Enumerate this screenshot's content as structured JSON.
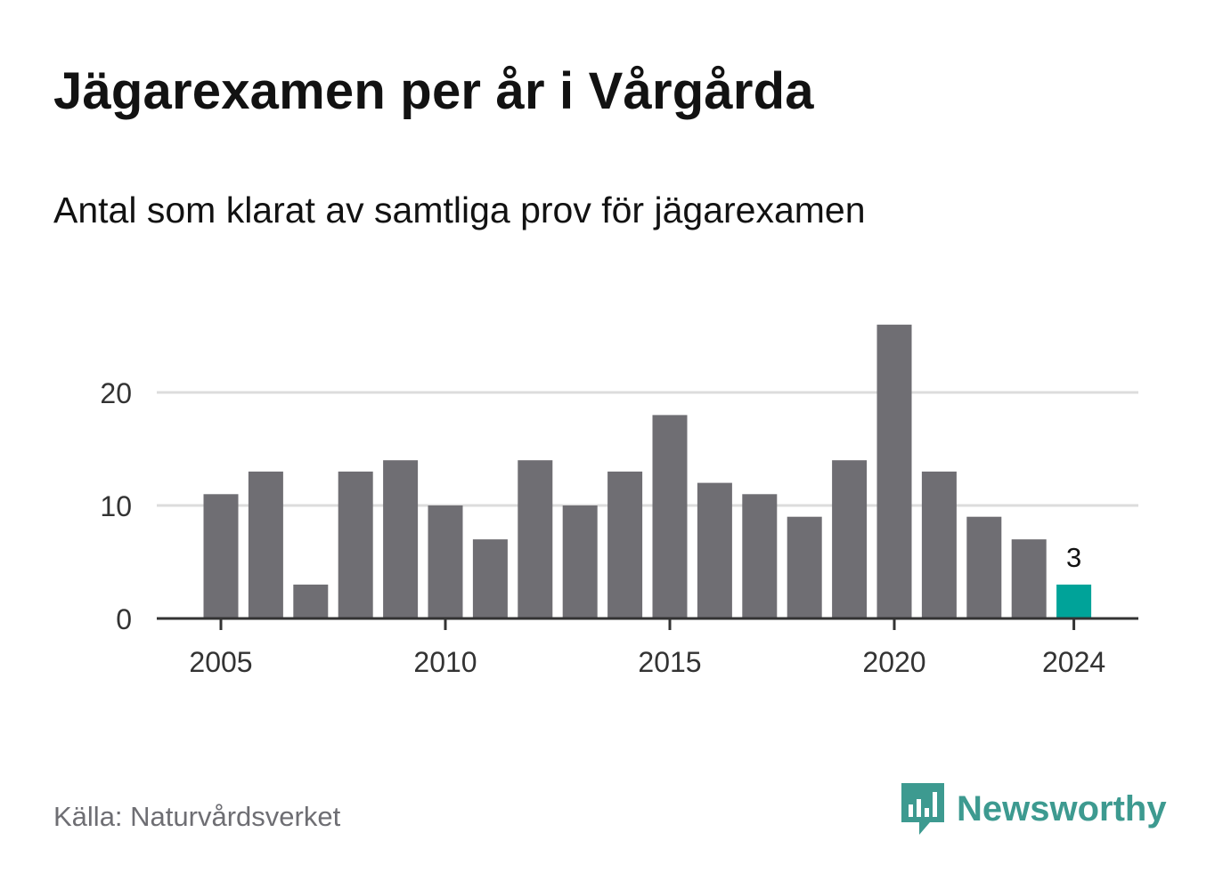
{
  "title": "Jägarexamen per år i Vårgårda",
  "subtitle": "Antal som klarat av samtliga prov för jägarexamen",
  "source": "Källa: Naturvårdsverket",
  "brand": {
    "name": "Newsworthy",
    "icon": "newsworthy-logo-icon",
    "color": "#3d9a90"
  },
  "colors": {
    "bar": "#6f6e73",
    "highlight": "#00a399",
    "grid": "#dcdcdc",
    "axis": "#333333"
  },
  "chart_data": {
    "type": "bar",
    "categories": [
      "2005",
      "2006",
      "2007",
      "2008",
      "2009",
      "2010",
      "2011",
      "2012",
      "2013",
      "2014",
      "2015",
      "2016",
      "2017",
      "2018",
      "2019",
      "2020",
      "2021",
      "2022",
      "2023",
      "2024"
    ],
    "values": [
      11,
      13,
      3,
      13,
      14,
      10,
      7,
      14,
      10,
      13,
      18,
      12,
      11,
      9,
      14,
      26,
      13,
      9,
      7,
      3
    ],
    "highlight_category": "2024",
    "highlight_label": "3",
    "x_tick_labels": [
      "2005",
      "2010",
      "2015",
      "2020",
      "2024"
    ],
    "y_ticks": [
      "0",
      "10",
      "20"
    ],
    "ylim": [
      0,
      28
    ],
    "xlabel": "",
    "ylabel": "",
    "grid": true
  }
}
